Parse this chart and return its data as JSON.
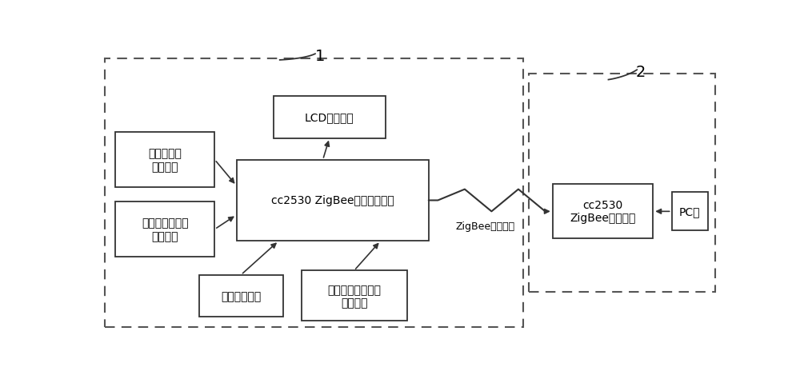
{
  "bg_color": "#ffffff",
  "line_color": "#333333",
  "dashed_color": "#555555",
  "box1_label": "LCD显示模块",
  "box2_label": "温度传感器\n电路模块",
  "box3_label": "光照强度传感器\n电路模块",
  "box4_label": "cc2530 ZigBee控制核心模块",
  "box5_label": "电源电路模块",
  "box6_label": "压力应变片传感器\n电路模块",
  "box7_label": "cc2530\nZigBee接收模块",
  "box8_label": "PC机",
  "label1": "1",
  "label2": "2",
  "zigbee_label": "ZigBee无线通信",
  "font_size": 10,
  "label_font_size": 14
}
